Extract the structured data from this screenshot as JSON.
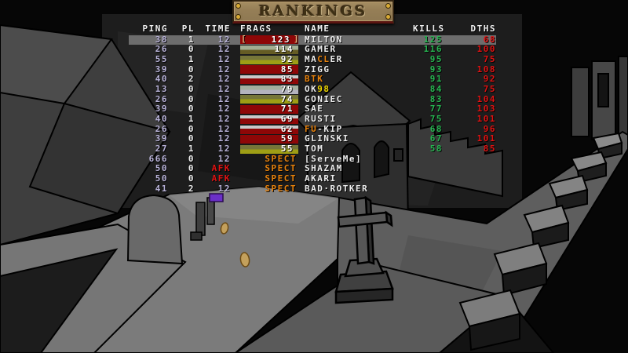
{
  "banner": {
    "title": "RANKINGS"
  },
  "scoreboard": {
    "columns": [
      "PING",
      "PL",
      "TIME",
      "FRAGS",
      "NAME",
      "KILLS",
      "DTHS"
    ],
    "players": [
      {
        "ping": "38",
        "pl": "1",
        "time": "12",
        "frags": "123",
        "frag_style": "red",
        "leader": true,
        "highlight": true,
        "name": [
          {
            "text": "MILTON",
            "color": "white"
          }
        ],
        "kills": "125",
        "dths": "68"
      },
      {
        "ping": "26",
        "pl": "0",
        "time": "12",
        "frags": "114",
        "frag_style": "sage-olive",
        "name": [
          {
            "text": "GAMER",
            "color": "white"
          }
        ],
        "kills": "116",
        "dths": "100"
      },
      {
        "ping": "55",
        "pl": "1",
        "time": "12",
        "frags": "92",
        "frag_style": "olive-yellow",
        "name": [
          {
            "text": "MA",
            "color": "white"
          },
          {
            "text": "CL",
            "color": "orange"
          },
          {
            "text": "ER",
            "color": "white"
          }
        ],
        "kills": "95",
        "dths": "75"
      },
      {
        "ping": "39",
        "pl": "0",
        "time": "12",
        "frags": "85",
        "frag_style": "red",
        "name": [
          {
            "text": "ZIGG",
            "color": "white"
          }
        ],
        "kills": "93",
        "dths": "108"
      },
      {
        "ping": "40",
        "pl": "2",
        "time": "12",
        "frags": "83",
        "frag_style": "white-red",
        "name": [
          {
            "text": "BTK",
            "color": "orange"
          }
        ],
        "kills": "91",
        "dths": "92"
      },
      {
        "ping": "13",
        "pl": "0",
        "time": "12",
        "frags": "79",
        "frag_style": "gray",
        "name": [
          {
            "text": "OK",
            "color": "white"
          },
          {
            "text": "98",
            "color": "yellow"
          }
        ],
        "kills": "84",
        "dths": "75"
      },
      {
        "ping": "26",
        "pl": "0",
        "time": "12",
        "frags": "74",
        "frag_style": "olive-yellow",
        "name": [
          {
            "text": "GONIEC",
            "color": "white"
          }
        ],
        "kills": "83",
        "dths": "104"
      },
      {
        "ping": "39",
        "pl": "0",
        "time": "12",
        "frags": "71",
        "frag_style": "red",
        "name": [
          {
            "text": "SAE",
            "color": "white"
          }
        ],
        "kills": "77",
        "dths": "103"
      },
      {
        "ping": "40",
        "pl": "1",
        "time": "12",
        "frags": "69",
        "frag_style": "white-red",
        "name": [
          {
            "text": "RUSTI",
            "color": "white"
          }
        ],
        "kills": "75",
        "dths": "101"
      },
      {
        "ping": "26",
        "pl": "0",
        "time": "12",
        "frags": "62",
        "frag_style": "white-red",
        "name": [
          {
            "text": "FU",
            "color": "orange"
          },
          {
            "text": "-KIP",
            "color": "white"
          }
        ],
        "kills": "68",
        "dths": "96"
      },
      {
        "ping": "39",
        "pl": "0",
        "time": "12",
        "frags": "59",
        "frag_style": "red",
        "name": [
          {
            "text": "GLINSKI",
            "color": "white"
          }
        ],
        "kills": "67",
        "dths": "101"
      },
      {
        "ping": "27",
        "pl": "1",
        "time": "12",
        "frags": "55",
        "frag_style": "olive-yellow",
        "name": [
          {
            "text": "TOM",
            "color": "white"
          }
        ],
        "kills": "58",
        "dths": "85"
      },
      {
        "ping": "666",
        "pl": "0",
        "time": "12",
        "frags": "SPECT",
        "frag_style": "spect",
        "name": [
          {
            "text": "[ServeMe]",
            "color": "white"
          }
        ],
        "kills": "",
        "dths": ""
      },
      {
        "ping": "50",
        "pl": "0",
        "time": "AFK",
        "frags": "SPECT",
        "frag_style": "spect",
        "name": [
          {
            "text": "SHAZAM",
            "color": "white"
          }
        ],
        "kills": "",
        "dths": ""
      },
      {
        "ping": "50",
        "pl": "0",
        "time": "AFK",
        "frags": "SPECT",
        "frag_style": "spect",
        "name": [
          {
            "text": "AKARI",
            "color": "white"
          }
        ],
        "kills": "",
        "dths": ""
      },
      {
        "ping": "41",
        "pl": "2",
        "time": "12",
        "frags": "SPECT",
        "frag_style": "spect",
        "name": [
          {
            "text": "BAD·ROTKER",
            "color": "white"
          }
        ],
        "kills": "",
        "dths": ""
      }
    ]
  },
  "colors": {
    "kills_green": "#27b551",
    "deaths_red": "#e01212",
    "spectator_orange": "#e8820c",
    "afk_red": "#e01212",
    "ping_lavender": "#b9b3d9",
    "highlight_row_gray": "#6d6d6d",
    "frag_cell_red": "#8e0707",
    "banner_bronze": "#957e56"
  }
}
